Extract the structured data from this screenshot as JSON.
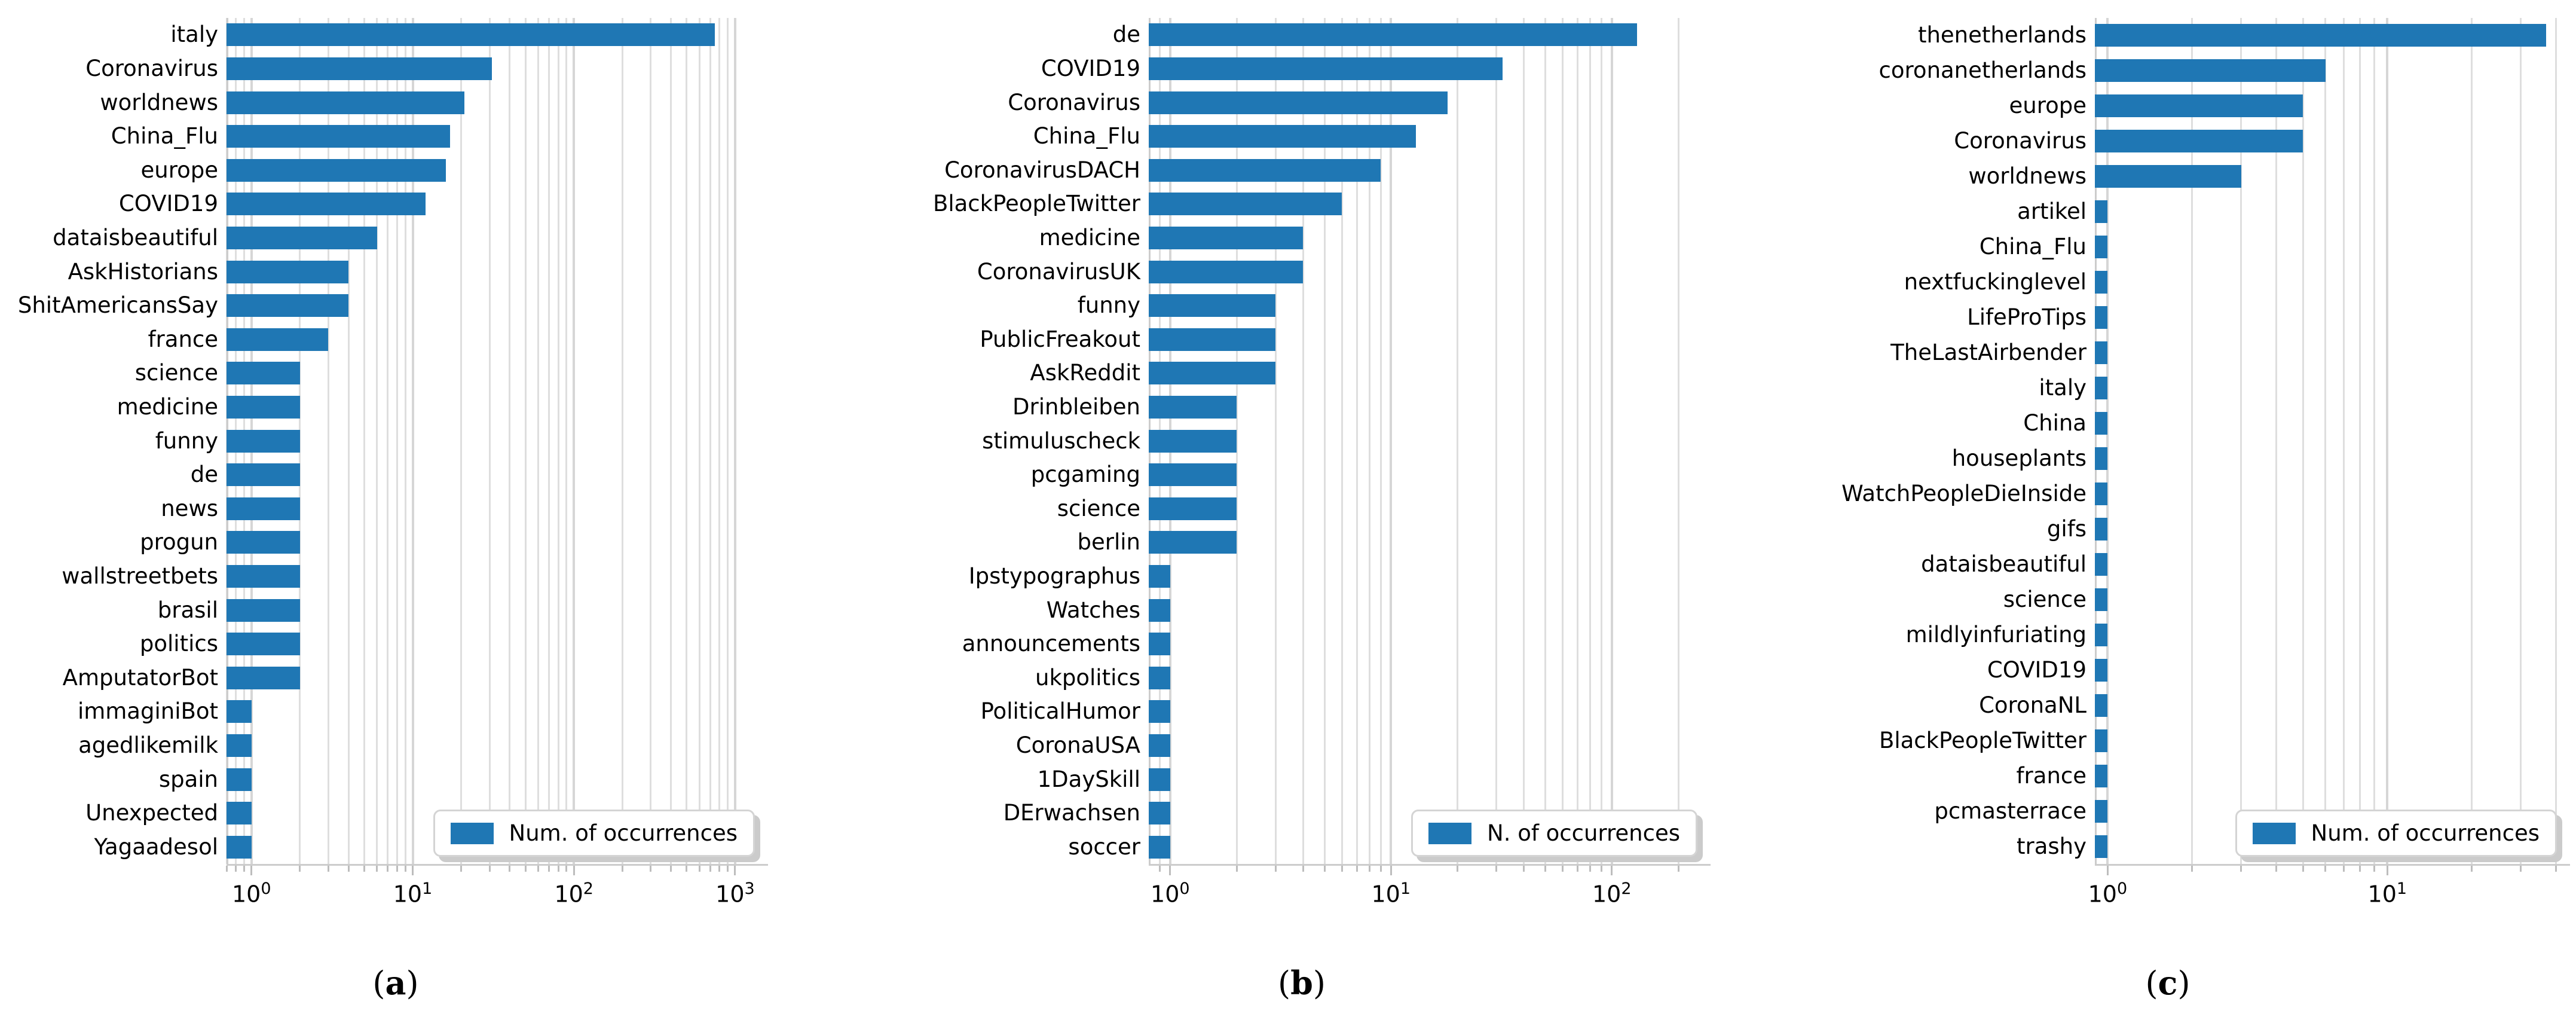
{
  "style": {
    "bar_color": "#1f77b4",
    "grid_color": "#dedede",
    "axis_color": "#cccccc",
    "tick_color": "#bdbdbd",
    "legend_border": "#d4d4d4",
    "legend_shadow": "#cbcbcb",
    "text_color": "#000000"
  },
  "captions": [
    {
      "open": "(",
      "letter": "a",
      "close": ")"
    },
    {
      "open": "(",
      "letter": "b",
      "close": ")"
    },
    {
      "open": "(",
      "letter": "c",
      "close": ")"
    }
  ],
  "chart_data": [
    {
      "type": "bar",
      "orientation": "horizontal",
      "xscale": "log",
      "grid": true,
      "legend_label": "Num. of occurrences",
      "legend_position": "lower right",
      "xtick_base": "10",
      "xtick_exponents": [
        0,
        1,
        2,
        3
      ],
      "xlim": [
        0.7,
        1600
      ],
      "categories": [
        "italy",
        "Coronavirus",
        "worldnews",
        "China_Flu",
        "europe",
        "COVID19",
        "dataisbeautiful",
        "AskHistorians",
        "ShitAmericansSay",
        "france",
        "science",
        "medicine",
        "funny",
        "de",
        "news",
        "progun",
        "wallstreetbets",
        "brasil",
        "politics",
        "AmputatorBot",
        "immaginiBot",
        "agedlikemilk",
        "spain",
        "Unexpected",
        "Yagaadesol"
      ],
      "values": [
        750,
        31,
        21,
        17,
        16,
        12,
        6,
        4,
        4,
        3,
        2,
        2,
        2,
        2,
        2,
        2,
        2,
        2,
        2,
        2,
        1,
        1,
        1,
        1,
        1
      ]
    },
    {
      "type": "bar",
      "orientation": "horizontal",
      "xscale": "log",
      "grid": true,
      "legend_label": "N. of occurrences",
      "legend_position": "lower right",
      "xtick_base": "10",
      "xtick_exponents": [
        0,
        1,
        2
      ],
      "xlim": [
        0.8,
        280
      ],
      "categories": [
        "de",
        "COVID19",
        "Coronavirus",
        "China_Flu",
        "CoronavirusDACH",
        "BlackPeopleTwitter",
        "medicine",
        "CoronavirusUK",
        "funny",
        "PublicFreakout",
        "AskReddit",
        "Drinbleiben",
        "stimuluscheck",
        "pcgaming",
        "science",
        "berlin",
        "Ipstypographus",
        "Watches",
        "announcements",
        "ukpolitics",
        "PoliticalHumor",
        "CoronaUSA",
        "1DaySkill",
        "DErwachsen",
        "soccer"
      ],
      "values": [
        130,
        32,
        18,
        13,
        9,
        6,
        4,
        4,
        3,
        3,
        3,
        2,
        2,
        2,
        2,
        2,
        1,
        1,
        1,
        1,
        1,
        1,
        1,
        1,
        1
      ]
    },
    {
      "type": "bar",
      "orientation": "horizontal",
      "xscale": "log",
      "grid": true,
      "legend_label": "Num. of occurrences",
      "legend_position": "lower right",
      "xtick_base": "10",
      "xtick_exponents": [
        0,
        1
      ],
      "xlim": [
        0.9,
        45
      ],
      "categories": [
        "thenetherlands",
        "coronanetherlands",
        "europe",
        "Coronavirus",
        "worldnews",
        "artikel",
        "China_Flu",
        "nextfuckinglevel",
        "LifeProTips",
        "TheLastAirbender",
        "italy",
        "China",
        "houseplants",
        "WatchPeopleDieInside",
        "gifs",
        "dataisbeautiful",
        "science",
        "mildlyinfuriating",
        "COVID19",
        "CoronaNL",
        "BlackPeopleTwitter",
        "france",
        "pcmasterrace",
        "trashy"
      ],
      "values": [
        37,
        6,
        5,
        5,
        3,
        1,
        1,
        1,
        1,
        1,
        1,
        1,
        1,
        1,
        1,
        1,
        1,
        1,
        1,
        1,
        1,
        1,
        1,
        1
      ]
    }
  ]
}
